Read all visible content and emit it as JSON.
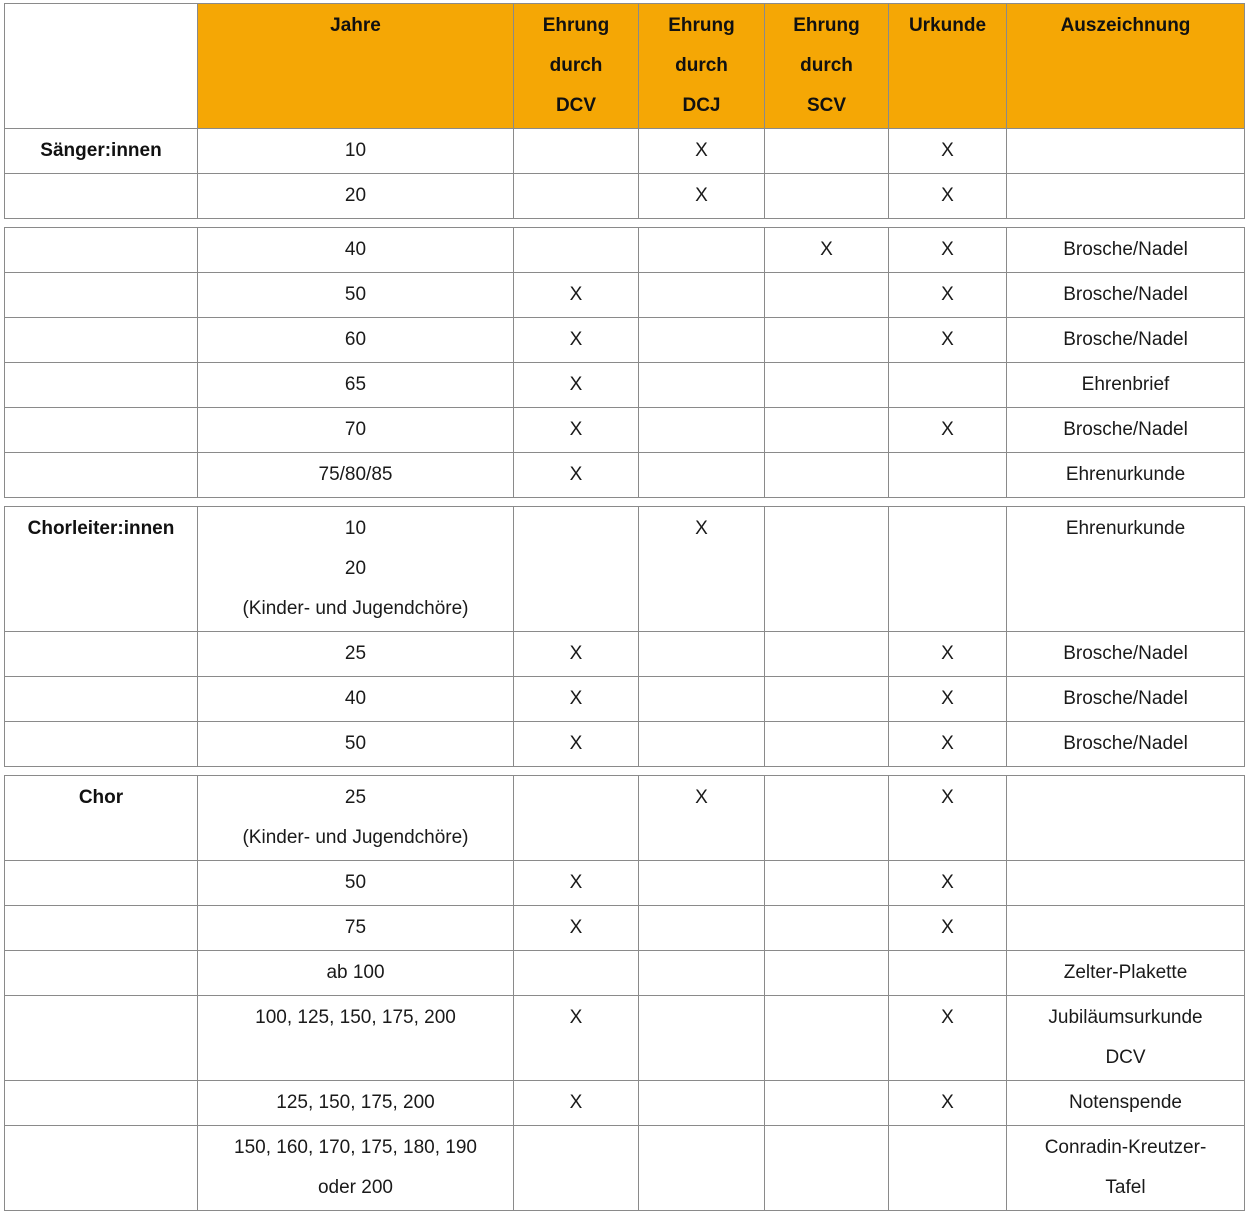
{
  "colors": {
    "header_bg": "#F5A705",
    "border": "#8A8A8A",
    "text": "#1A1A1A"
  },
  "table": {
    "mark": "X",
    "headers": [
      {
        "id": "category",
        "lines": []
      },
      {
        "id": "jahre",
        "lines": [
          "Jahre"
        ]
      },
      {
        "id": "ehrung-dcv",
        "lines": [
          "Ehrung",
          "durch",
          "DCV"
        ]
      },
      {
        "id": "ehrung-dcj",
        "lines": [
          "Ehrung",
          "durch",
          "DCJ"
        ]
      },
      {
        "id": "ehrung-scv",
        "lines": [
          "Ehrung",
          "durch",
          "SCV"
        ]
      },
      {
        "id": "urkunde",
        "lines": [
          "Urkunde"
        ]
      },
      {
        "id": "auszeichnung",
        "lines": [
          "Auszeichnung"
        ]
      }
    ],
    "groups": [
      {
        "rows": [
          {
            "category": "Sänger:innen",
            "jahre": [
              "10"
            ],
            "dcv": "",
            "dcj": "X",
            "scv": "",
            "urkunde": "X",
            "auszeichnung": []
          },
          {
            "category": "",
            "jahre": [
              "20"
            ],
            "dcv": "",
            "dcj": "X",
            "scv": "",
            "urkunde": "X",
            "auszeichnung": []
          }
        ]
      },
      {
        "rows": [
          {
            "category": "",
            "jahre": [
              "40"
            ],
            "dcv": "",
            "dcj": "",
            "scv": "X",
            "urkunde": "X",
            "auszeichnung": [
              "Brosche/Nadel"
            ]
          },
          {
            "category": "",
            "jahre": [
              "50"
            ],
            "dcv": "X",
            "dcj": "",
            "scv": "",
            "urkunde": "X",
            "auszeichnung": [
              "Brosche/Nadel"
            ]
          },
          {
            "category": "",
            "jahre": [
              "60"
            ],
            "dcv": "X",
            "dcj": "",
            "scv": "",
            "urkunde": "X",
            "auszeichnung": [
              "Brosche/Nadel"
            ]
          },
          {
            "category": "",
            "jahre": [
              "65"
            ],
            "dcv": "X",
            "dcj": "",
            "scv": "",
            "urkunde": "",
            "auszeichnung": [
              "Ehrenbrief"
            ]
          },
          {
            "category": "",
            "jahre": [
              "70"
            ],
            "dcv": "X",
            "dcj": "",
            "scv": "",
            "urkunde": "X",
            "auszeichnung": [
              "Brosche/Nadel"
            ]
          },
          {
            "category": "",
            "jahre": [
              "75/80/85"
            ],
            "dcv": "X",
            "dcj": "",
            "scv": "",
            "urkunde": "",
            "auszeichnung": [
              "Ehrenurkunde"
            ]
          }
        ]
      },
      {
        "rows": [
          {
            "category": "Chorleiter:innen",
            "jahre": [
              "10",
              "20",
              "(Kinder- und Jugendchöre)"
            ],
            "dcv": "",
            "dcj": "X",
            "scv": "",
            "urkunde": "",
            "auszeichnung": [
              "Ehrenurkunde"
            ]
          },
          {
            "category": "",
            "jahre": [
              "25"
            ],
            "dcv": "X",
            "dcj": "",
            "scv": "",
            "urkunde": "X",
            "auszeichnung": [
              "Brosche/Nadel"
            ]
          },
          {
            "category": "",
            "jahre": [
              "40"
            ],
            "dcv": "X",
            "dcj": "",
            "scv": "",
            "urkunde": "X",
            "auszeichnung": [
              "Brosche/Nadel"
            ]
          },
          {
            "category": "",
            "jahre": [
              "50"
            ],
            "dcv": "X",
            "dcj": "",
            "scv": "",
            "urkunde": "X",
            "auszeichnung": [
              "Brosche/Nadel"
            ]
          }
        ]
      },
      {
        "rows": [
          {
            "category": "Chor",
            "jahre": [
              "25",
              "(Kinder- und Jugendchöre)"
            ],
            "dcv": "",
            "dcj": "X",
            "scv": "",
            "urkunde": "X",
            "auszeichnung": []
          },
          {
            "category": "",
            "jahre": [
              "50"
            ],
            "dcv": "X",
            "dcj": "",
            "scv": "",
            "urkunde": "X",
            "auszeichnung": []
          },
          {
            "category": "",
            "jahre": [
              "75"
            ],
            "dcv": "X",
            "dcj": "",
            "scv": "",
            "urkunde": "X",
            "auszeichnung": []
          },
          {
            "category": "",
            "jahre": [
              "ab 100"
            ],
            "dcv": "",
            "dcj": "",
            "scv": "",
            "urkunde": "",
            "auszeichnung": [
              "Zelter-Plakette"
            ]
          },
          {
            "category": "",
            "jahre": [
              "100, 125, 150, 175, 200"
            ],
            "dcv": "X",
            "dcj": "",
            "scv": "",
            "urkunde": "X",
            "auszeichnung": [
              "Jubiläumsurkunde",
              "DCV"
            ]
          },
          {
            "category": "",
            "jahre": [
              "125, 150, 175, 200"
            ],
            "dcv": "X",
            "dcj": "",
            "scv": "",
            "urkunde": "X",
            "auszeichnung": [
              "Notenspende"
            ]
          },
          {
            "category": "",
            "jahre": [
              "150, 160, 170, 175, 180, 190",
              "oder 200"
            ],
            "dcv": "",
            "dcj": "",
            "scv": "",
            "urkunde": "",
            "auszeichnung": [
              "Conradin-Kreutzer-",
              "Tafel"
            ]
          }
        ]
      }
    ]
  }
}
